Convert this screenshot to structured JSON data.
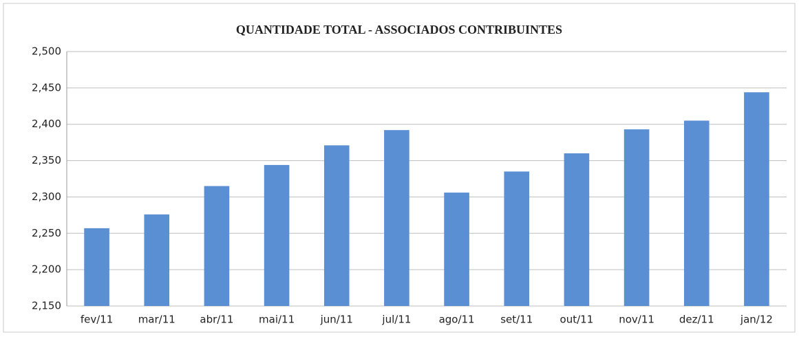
{
  "chart_data": {
    "type": "bar",
    "title": "QUANTIDADE TOTAL - ASSOCIADOS CONTRIBUINTES",
    "categories": [
      "fev/11",
      "mar/11",
      "abr/11",
      "mai/11",
      "jun/11",
      "jul/11",
      "ago/11",
      "set/11",
      "out/11",
      "nov/11",
      "dez/11",
      "jan/12"
    ],
    "values": [
      2257,
      2276,
      2315,
      2344,
      2371,
      2392,
      2306,
      2335,
      2360,
      2393,
      2405,
      2444
    ],
    "color": "#5b8fd4",
    "ylim": [
      2150,
      2500
    ],
    "yticks": [
      {
        "value": 2150,
        "label": "2,150"
      },
      {
        "value": 2200,
        "label": "2,200"
      },
      {
        "value": 2250,
        "label": "2,250"
      },
      {
        "value": 2300,
        "label": "2,300"
      },
      {
        "value": 2350,
        "label": "2,350"
      },
      {
        "value": 2400,
        "label": "2,400"
      },
      {
        "value": 2450,
        "label": "2,450"
      },
      {
        "value": 2500,
        "label": "2,500"
      }
    ],
    "grid": true
  }
}
